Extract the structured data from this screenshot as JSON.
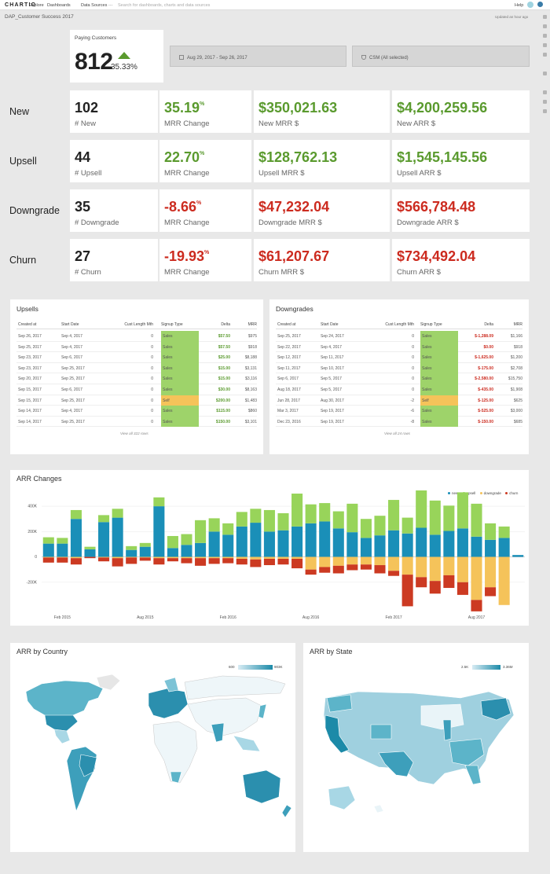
{
  "app": {
    "logo": "CHARTIO",
    "nav": [
      "Explore",
      "Dashboards",
      "Data Sources",
      "···"
    ],
    "search_placeholder": "Search for dashboards, charts and data sources",
    "help": "Help"
  },
  "dashboard": {
    "title": "DAP_Customer Success 2017",
    "updated": "Updated an hour ago"
  },
  "paying_customers": {
    "label": "Paying Customers",
    "value": "812",
    "change": "35.33%",
    "accent": "#5a9a2e"
  },
  "filters": {
    "date_range": "Aug 29, 2017  -  Sep 26, 2017",
    "csm": "CSM (All selected)"
  },
  "metrics": [
    {
      "label": "New",
      "count": "102",
      "count_label": "# New",
      "mrr_change": "35.19",
      "mrr_change_label": "MRR Change",
      "mrr": "$350,021.63",
      "mrr_label": "New MRR $",
      "arr": "$4,200,259.56",
      "arr_label": "New ARR $",
      "tone": "green"
    },
    {
      "label": "Upsell",
      "count": "44",
      "count_label": "# Upsell",
      "mrr_change": "22.70",
      "mrr_change_label": "MRR Change",
      "mrr": "$128,762.13",
      "mrr_label": "Upsell MRR $",
      "arr": "$1,545,145.56",
      "arr_label": "Upsell ARR $",
      "tone": "green"
    },
    {
      "label": "Downgrade",
      "count": "35",
      "count_label": "# Downgrade",
      "mrr_change": "-8.66",
      "mrr_change_label": "MRR Change",
      "mrr": "$47,232.04",
      "mrr_label": "Downgrade MRR $",
      "arr": "$566,784.48",
      "arr_label": "Downgrade ARR $",
      "tone": "red"
    },
    {
      "label": "Churn",
      "count": "27",
      "count_label": "# Churn",
      "mrr_change": "-19.93",
      "mrr_change_label": "MRR Change",
      "mrr": "$61,207.67",
      "mrr_label": "Churn MRR $",
      "arr": "$734,492.04",
      "arr_label": "Churn ARR $",
      "tone": "red"
    }
  ],
  "pct_sign": "%",
  "columns": [
    "Created at",
    "Start Date",
    "Cust Length Mth",
    "Signup Type",
    "Delta",
    "MRR"
  ],
  "upsells": {
    "title": "Upsells",
    "footer": "View all 322 rows",
    "rows": [
      [
        "Sep 26, 2017",
        "Sep 4, 2017",
        "0",
        "Sales",
        "$57.50",
        "$975"
      ],
      [
        "Sep 25, 2017",
        "Sep 4, 2017",
        "0",
        "Sales",
        "$57.50",
        "$918"
      ],
      [
        "Sep 23, 2017",
        "Sep 6, 2017",
        "0",
        "Sales",
        "$25.00",
        "$8,188"
      ],
      [
        "Sep 23, 2017",
        "Sep 25, 2017",
        "0",
        "Sales",
        "$15.00",
        "$3,131"
      ],
      [
        "Sep 20, 2017",
        "Sep 25, 2017",
        "0",
        "Sales",
        "$15.00",
        "$3,116"
      ],
      [
        "Sep 15, 2017",
        "Sep 6, 2017",
        "0",
        "Sales",
        "$30.00",
        "$8,163"
      ],
      [
        "Sep 15, 2017",
        "Sep 25, 2017",
        "0",
        "Self",
        "$200.00",
        "$1,483"
      ],
      [
        "Sep 14, 2017",
        "Sep 4, 2017",
        "0",
        "Sales",
        "$115.00",
        "$860"
      ],
      [
        "Sep 14, 2017",
        "Sep 25, 2017",
        "0",
        "Sales",
        "$150.00",
        "$3,101"
      ]
    ]
  },
  "downgrades": {
    "title": "Downgrades",
    "footer": "View all 24 rows",
    "rows": [
      [
        "Sep 25, 2017",
        "Sep 24, 2017",
        "0",
        "Sales",
        "$-1,288.09",
        "$1,166"
      ],
      [
        "Sep 22, 2017",
        "Sep 4, 2017",
        "0",
        "Sales",
        "$0.00",
        "$918"
      ],
      [
        "Sep 12, 2017",
        "Sep 11, 2017",
        "0",
        "Sales",
        "$-1,625.00",
        "$1,200"
      ],
      [
        "Sep 11, 2017",
        "Sep 10, 2017",
        "0",
        "Sales",
        "$-175.00",
        "$2,708"
      ],
      [
        "Sep 6, 2017",
        "Sep 5, 2017",
        "0",
        "Sales",
        "$-2,580.00",
        "$15,750"
      ],
      [
        "Aug 18, 2017",
        "Sep 5, 2017",
        "0",
        "Sales",
        "$-435.00",
        "$1,908"
      ],
      [
        "Jun 28, 2017",
        "Aug 30, 2017",
        "-2",
        "Self",
        "$-125.00",
        "$625"
      ],
      [
        "Mar 3, 2017",
        "Sep 19, 2017",
        "-6",
        "Sales",
        "$-525.00",
        "$3,000"
      ],
      [
        "Dec 23, 2016",
        "Sep 19, 2017",
        "-8",
        "Sales",
        "$-150.00",
        "$685"
      ]
    ]
  },
  "signup_colors": {
    "Sales": "#9ed36a",
    "Self": "#f5c35a"
  },
  "chart_data": {
    "type": "bar",
    "stacked": true,
    "title": "ARR Changes",
    "series_colors": {
      "new": "#1a8fb8",
      "upsell": "#98d45a",
      "downgrade": "#f5c35a",
      "churn": "#cc3a22"
    },
    "legend": [
      "new",
      "upsell",
      "downgrade",
      "churn"
    ],
    "legend_position": "top-right",
    "ylim": [
      -400000,
      500000
    ],
    "yticks": [
      400000,
      200000,
      0,
      -200000
    ],
    "ytick_labels": [
      "400K",
      "200K",
      "0",
      "-200K"
    ],
    "xtick_labels": [
      "Feb 2015",
      "Aug 2015",
      "Feb 2016",
      "Aug 2016",
      "Feb 2017",
      "Aug 2017"
    ],
    "xtick_index": [
      1,
      7,
      13,
      19,
      25,
      31
    ],
    "new": [
      105,
      105,
      300,
      60,
      275,
      310,
      55,
      80,
      400,
      70,
      95,
      110,
      200,
      175,
      240,
      270,
      200,
      210,
      240,
      265,
      280,
      225,
      195,
      150,
      170,
      210,
      185,
      230,
      175,
      205,
      225,
      160,
      135,
      150,
      15
    ],
    "upsell": [
      50,
      45,
      70,
      20,
      55,
      70,
      30,
      30,
      70,
      95,
      85,
      180,
      105,
      90,
      115,
      110,
      170,
      135,
      260,
      150,
      145,
      135,
      225,
      150,
      155,
      240,
      125,
      295,
      270,
      200,
      285,
      260,
      130,
      90,
      0
    ],
    "downgrade": [
      -5,
      -5,
      -10,
      0,
      -5,
      -10,
      -5,
      -5,
      -10,
      -10,
      -10,
      -10,
      -10,
      -10,
      -15,
      -20,
      -15,
      -15,
      -15,
      -100,
      -80,
      -70,
      -60,
      -60,
      -65,
      -110,
      -140,
      -160,
      -190,
      -145,
      -200,
      -340,
      -240,
      -380,
      0
    ],
    "churn": [
      -40,
      -40,
      -50,
      -10,
      -30,
      -65,
      -50,
      -25,
      -50,
      -25,
      -40,
      -60,
      -45,
      -40,
      -45,
      -60,
      -50,
      -45,
      -75,
      -40,
      -45,
      -60,
      -45,
      -40,
      -65,
      -40,
      -250,
      -80,
      -100,
      -100,
      -100,
      -90,
      -70,
      0,
      0
    ]
  },
  "arr_by_country": {
    "title": "ARR by Country",
    "legend_min": "600",
    "legend_max": "903K"
  },
  "arr_by_state": {
    "title": "ARR by State",
    "legend_min": "2.5K",
    "legend_max": "3.36M"
  }
}
